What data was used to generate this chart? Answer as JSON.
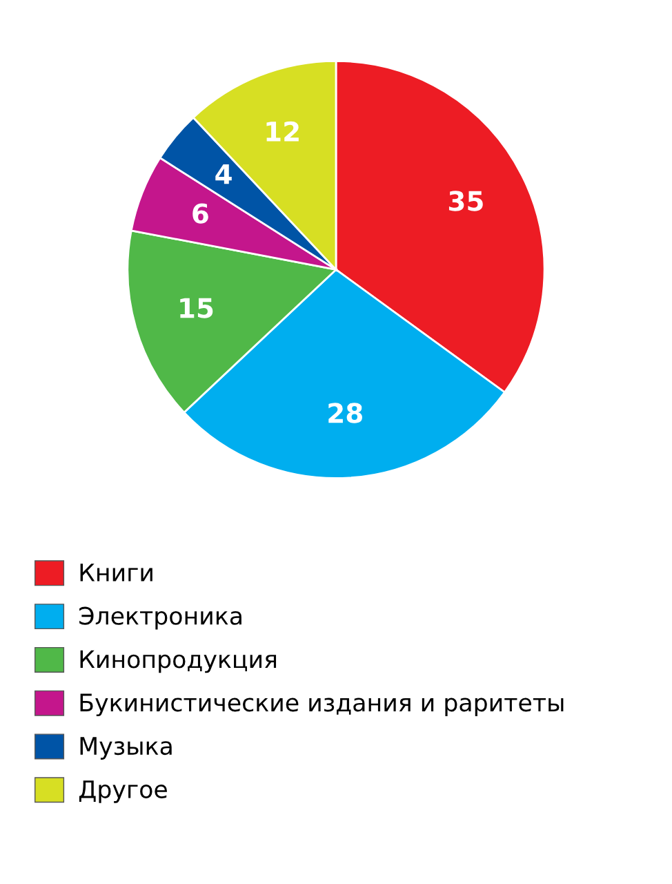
{
  "chart_data": {
    "type": "pie",
    "categories": [
      "Книги",
      "Электроника",
      "Кинопродукция",
      "Букинистические издания и раритеты",
      "Музыка",
      "Другое"
    ],
    "values": [
      35,
      28,
      15,
      6,
      4,
      12
    ],
    "colors": [
      "#ed1c24",
      "#00aeef",
      "#50b848",
      "#c4168c",
      "#0054a6",
      "#d7df23"
    ],
    "data_labels": true,
    "legend": "bottom"
  }
}
